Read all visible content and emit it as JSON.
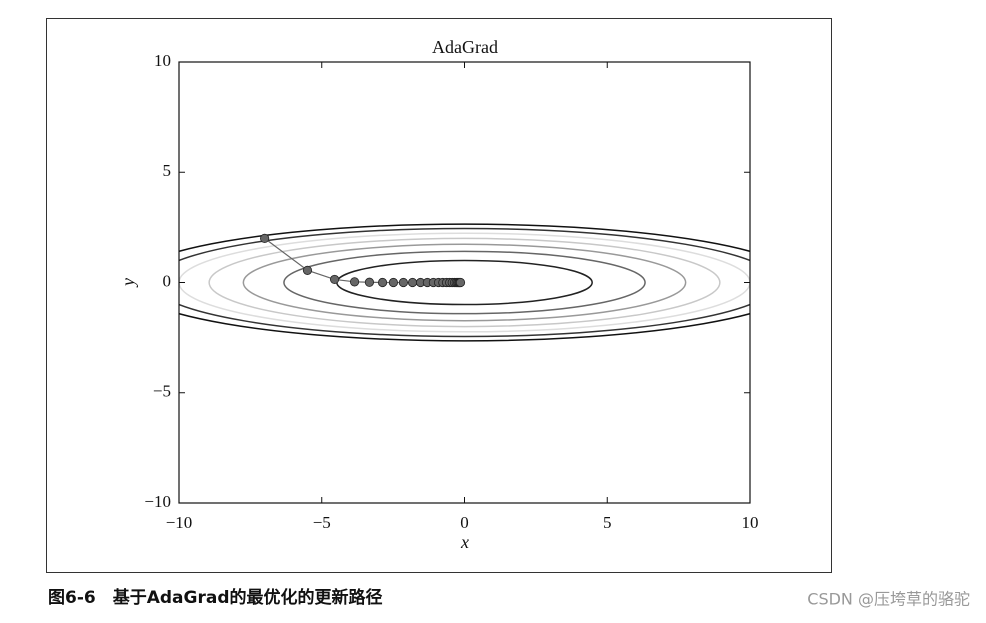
{
  "chart_data": {
    "type": "line",
    "title": "AdaGrad",
    "x_label": "x",
    "y_label": "y",
    "xlim": [
      -10,
      10
    ],
    "ylim": [
      -10,
      10
    ],
    "xticks": [
      {
        "value": -10,
        "label": "−10"
      },
      {
        "value": -5,
        "label": "−5"
      },
      0,
      5,
      10
    ],
    "yticks": [
      {
        "value": -10,
        "label": "−10"
      },
      {
        "value": -5,
        "label": "−5"
      },
      0,
      5,
      10
    ],
    "contour_levels": [
      {
        "level": 1,
        "color": "#222222"
      },
      {
        "level": 2,
        "color": "#666666"
      },
      {
        "level": 3,
        "color": "#999999"
      },
      {
        "level": 4,
        "color": "#c8c8c8"
      },
      {
        "level": 5,
        "color": "#dddddd"
      },
      {
        "level": 6,
        "color": "#333333"
      },
      {
        "level": 7,
        "color": "#111111"
      }
    ],
    "series": [
      {
        "color": "#666666",
        "x": [
          -7,
          -5.5,
          -4.55,
          -3.85,
          -3.33,
          -2.87,
          -2.49,
          -2.14,
          -1.82,
          -1.54,
          -1.3,
          -1.09,
          -0.91,
          -0.76,
          -0.63,
          -0.52,
          -0.43,
          -0.35,
          -0.29,
          -0.24,
          -0.2,
          -0.17,
          -0.14
        ],
        "values": [
          2,
          0.55,
          0.14,
          0.03,
          0.01,
          0,
          0,
          0,
          0,
          0,
          0,
          0,
          0,
          0,
          0,
          0,
          0,
          0,
          0,
          0,
          0,
          0,
          0
        ]
      }
    ]
  },
  "caption": "图6-6　基于AdaGrad的最优化的更新路径",
  "watermark": "CSDN @压垮草的骆驼"
}
